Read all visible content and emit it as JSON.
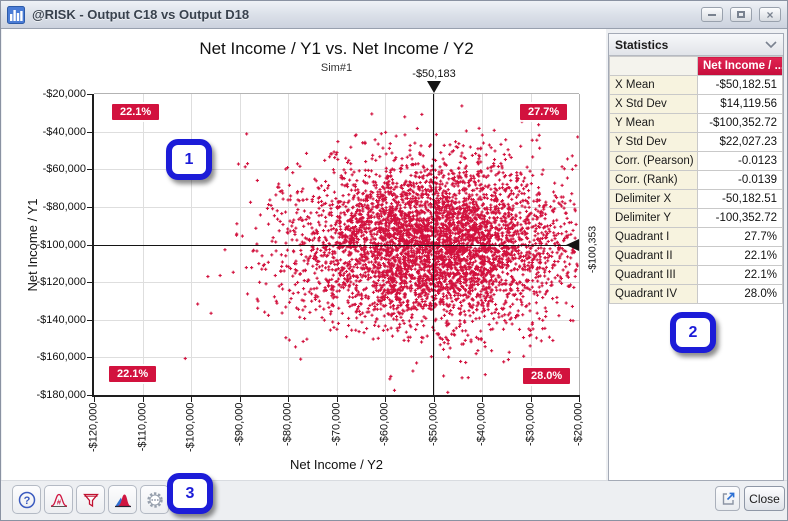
{
  "window": {
    "title": "@RISK - Output C18 vs Output D18",
    "controls": {
      "minimize": "minimize",
      "maximize": "maximize",
      "close_glyph": "×"
    }
  },
  "chart_data": {
    "type": "scatter",
    "title": "Net Income / Y1 vs. Net Income / Y2",
    "subtitle": "Sim#1",
    "xlabel": "Net Income / Y2",
    "ylabel": "Net Income / Y1",
    "xlim": [
      -120000,
      -20000
    ],
    "ylim": [
      -180000,
      -20000
    ],
    "x_tick_labels": [
      "-$120,000",
      "-$110,000",
      "-$100,000",
      "-$90,000",
      "-$80,000",
      "-$70,000",
      "-$60,000",
      "-$50,000",
      "-$40,000",
      "-$30,000",
      "-$20,000"
    ],
    "y_tick_labels": [
      "-$20,000",
      "-$40,000",
      "-$60,000",
      "-$80,000",
      "-$100,000",
      "-$120,000",
      "-$140,000",
      "-$160,000",
      "-$180,000"
    ],
    "grid": true,
    "n_points": 5000,
    "x_mean": -50182.51,
    "x_std": 14119.56,
    "y_mean": -100352.72,
    "y_std": 22027.23,
    "corr_pearson": -0.0123,
    "corr_rank": -0.0139,
    "marker": "plus",
    "point_color": "#d2123e",
    "delimiter": {
      "x": -50182.51,
      "y": -100352.72,
      "x_label": "-$50,183",
      "y_label": "-$100,353"
    },
    "quadrant_labels": {
      "top_left": "22.1%",
      "top_right": "27.7%",
      "bottom_left": "22.1%",
      "bottom_right": "28.0%"
    }
  },
  "stats_panel": {
    "header": "Statistics",
    "column_header": "Net Income / ...",
    "rows": [
      {
        "label": "X Mean",
        "value": "-$50,182.51"
      },
      {
        "label": "X Std Dev",
        "value": "$14,119.56"
      },
      {
        "label": "Y Mean",
        "value": "-$100,352.72"
      },
      {
        "label": "Y Std Dev",
        "value": "$22,027.23"
      },
      {
        "label": "Corr. (Pearson)",
        "value": "-0.0123"
      },
      {
        "label": "Corr. (Rank)",
        "value": "-0.0139"
      },
      {
        "label": "Delimiter X",
        "value": "-50,182.51"
      },
      {
        "label": "Delimiter Y",
        "value": "-100,352.72"
      },
      {
        "label": "Quadrant I",
        "value": "27.7%"
      },
      {
        "label": "Quadrant II",
        "value": "22.1%"
      },
      {
        "label": "Quadrant III",
        "value": "22.1%"
      },
      {
        "label": "Quadrant IV",
        "value": "28.0%"
      }
    ]
  },
  "callouts": [
    "1",
    "2",
    "3"
  ],
  "toolbar": {
    "icons": [
      "help-icon",
      "distribution-format-icon",
      "filter-icon",
      "overlay-distribution-icon",
      "settings-gear-icon"
    ],
    "export_icon": "export-icon",
    "close_label": "Close"
  },
  "colors": {
    "accent_red": "#d2123e",
    "callout_blue": "#1c1cd8",
    "delimiter_black": "#141414"
  }
}
